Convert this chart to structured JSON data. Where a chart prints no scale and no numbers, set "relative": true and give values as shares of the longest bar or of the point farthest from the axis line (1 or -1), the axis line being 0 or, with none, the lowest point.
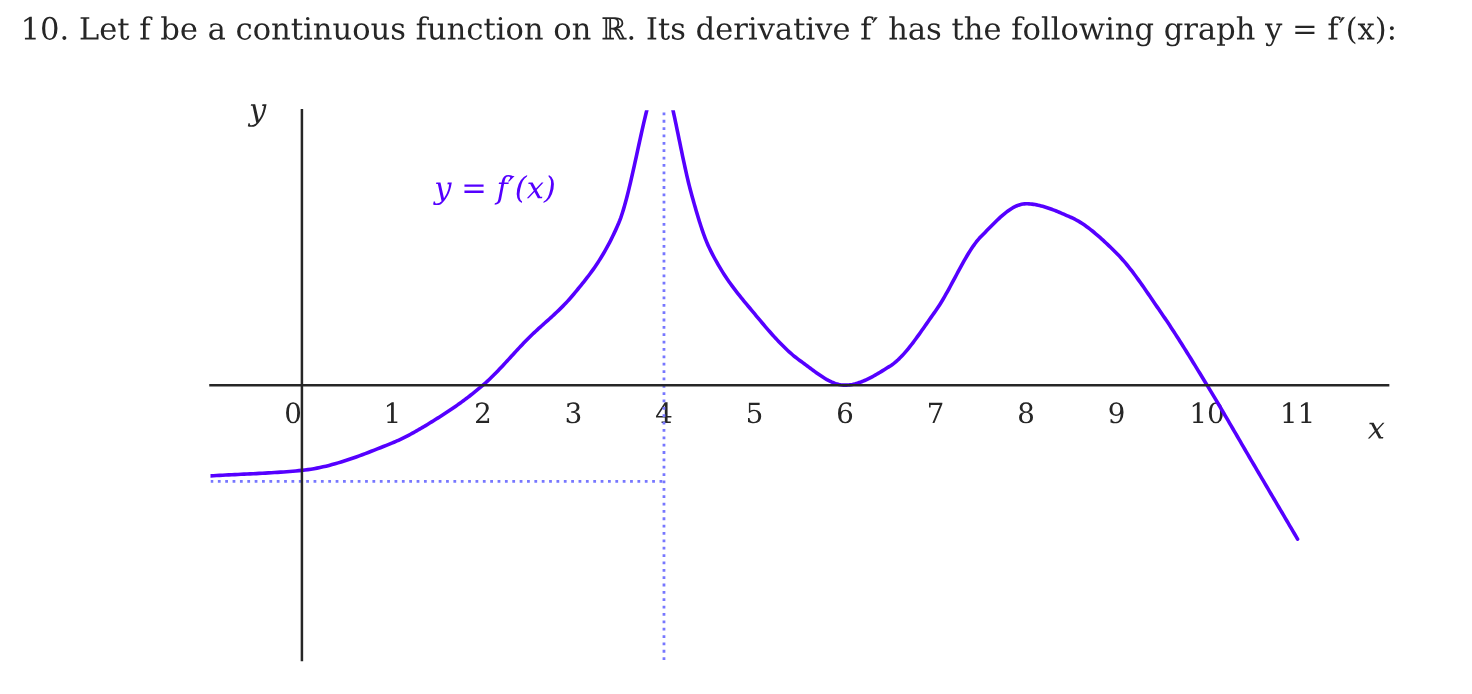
{
  "chart_data": {
    "type": "line",
    "relative": true,
    "title": "10. Let f be a continuous function on ℝ. Its derivative f′ has the following graph y = f′(x):",
    "xlabel": "x",
    "ylabel": "y",
    "xlim": [
      -1.01,
      12
    ],
    "xticks": [
      0,
      1,
      2,
      3,
      4,
      5,
      6,
      7,
      8,
      9,
      10,
      11
    ],
    "tick_labels": "x",
    "grid": false,
    "series": [
      {
        "name": "y = f′(x)",
        "color": "#5500ff",
        "x": [
          -1.01,
          0,
          1,
          1.5,
          2,
          2.5,
          3,
          3.5,
          3.81
        ],
        "values": [
          -0.33,
          -0.31,
          -0.21,
          -0.12,
          0,
          0.17,
          0.33,
          0.59,
          1
        ]
      },
      {
        "color": "#5500ff",
        "x": [
          4.1,
          4.3,
          4.5,
          5,
          5.5,
          6,
          6.5,
          7,
          7.5,
          8,
          8.5,
          9,
          9.5,
          10,
          10.5,
          11
        ],
        "values": [
          1,
          0.7,
          0.5,
          0.26,
          0.09,
          0,
          0.07,
          0.27,
          0.54,
          0.66,
          0.61,
          0.48,
          0.26,
          0,
          -0.28,
          -0.56
        ]
      }
    ],
    "ref_lines": [
      {
        "axis": "x",
        "value": 4,
        "color": "#7777ff",
        "line_style": "dotted"
      },
      {
        "axis": "y",
        "value": -0.35,
        "color": "#7777ff",
        "line_style": "dotted"
      }
    ]
  }
}
